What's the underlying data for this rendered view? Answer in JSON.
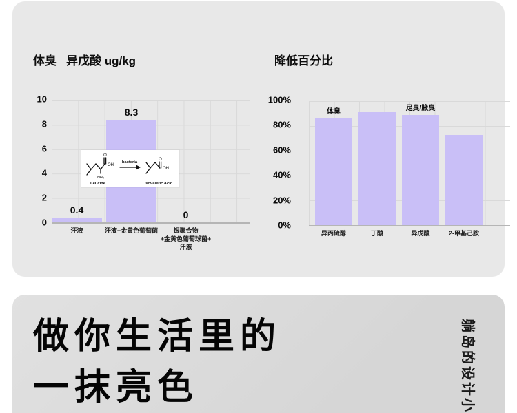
{
  "accent_color": "#c9bff7",
  "background_color": "#e8e8e8",
  "chart_data": [
    {
      "type": "bar",
      "title_label": "体臭",
      "title": "异戊酸 ug/kg",
      "categories": [
        "汗液",
        "汗液+金黄色葡萄菌",
        "银聚合物\n+金黄色葡萄球菌+\n汗液"
      ],
      "values": [
        0.4,
        8.3,
        0
      ],
      "value_labels": [
        "0.4",
        "8.3",
        "0"
      ],
      "ylim": [
        0,
        10
      ],
      "yticks": [
        "0",
        "2",
        "4",
        "6",
        "8",
        "10"
      ],
      "grid": true,
      "bar_color": "#c9bff7",
      "inset": {
        "left_caption": "Leucine",
        "arrow_label": "bacteria",
        "right_caption": "Isovaleric Acid",
        "atom_o_left": "O",
        "atom_oh_left": "OH",
        "atom_nh2": "NH₂",
        "atom_o_right": "O",
        "atom_oh_right": "OH"
      }
    },
    {
      "type": "bar",
      "title": "降低百分比",
      "categories": [
        "异丙硫醇",
        "丁酸",
        "异戊酸",
        "2-甲基己胺"
      ],
      "values": [
        85,
        90,
        88,
        72
      ],
      "ylim": [
        0,
        100
      ],
      "yticks": [
        "0%",
        "20%",
        "40%",
        "60%",
        "80%",
        "100%"
      ],
      "grid": true,
      "bar_color": "#c9bff7",
      "annotations": [
        {
          "text": "体臭",
          "bar_index": 0
        },
        {
          "text": "足臭/腋臭",
          "bar_index": 2
        }
      ]
    }
  ],
  "footer": {
    "headline_line1": "做你生活里的",
    "headline_line2": "一抹亮色",
    "vertical_brand_text": "躺岛的设计小"
  }
}
